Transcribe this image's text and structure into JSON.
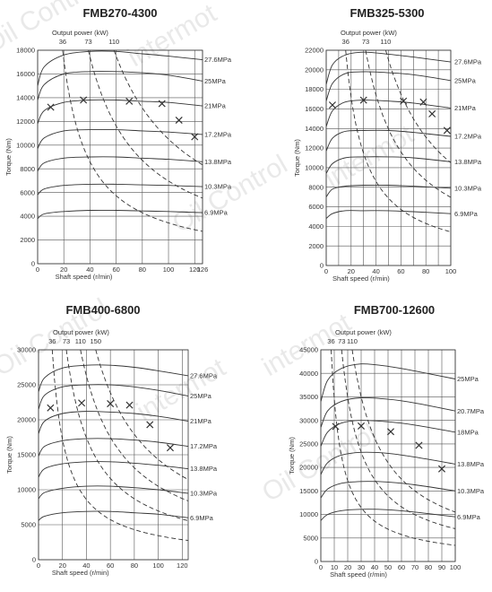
{
  "watermark": [
    "Oil Control",
    "intermot"
  ],
  "chart_data": [
    {
      "type": "line",
      "title": "FMB270-4300",
      "xlabel": "Shaft speed  (r/min)",
      "ylabel": "Torque (Nm)",
      "power_label": "Output power  (kW)",
      "xlim": [
        0,
        126
      ],
      "ylim": [
        0,
        18000
      ],
      "x_ticks": [
        0,
        20,
        40,
        60,
        80,
        100,
        120,
        126
      ],
      "x_tick_labels": [
        "0",
        "20",
        "40",
        "60",
        "80",
        "100",
        "120",
        "126"
      ],
      "y_ticks": [
        0,
        2000,
        4000,
        6000,
        8000,
        10000,
        12000,
        14000,
        16000,
        18000
      ],
      "power_curves": [
        {
          "label": "36",
          "kw": 36
        },
        {
          "label": "73",
          "kw": 73
        },
        {
          "label": "110",
          "kw": 110
        }
      ],
      "series": [
        {
          "name": "27.6MPa",
          "x": [
            0,
            5,
            20,
            40,
            60,
            80,
            100,
            126
          ],
          "y": [
            15000,
            16600,
            17600,
            17900,
            17900,
            17700,
            17500,
            17200
          ]
        },
        {
          "name": "25MPa",
          "x": [
            0,
            5,
            20,
            40,
            60,
            80,
            100,
            126
          ],
          "y": [
            13800,
            15100,
            16000,
            16200,
            16200,
            16100,
            15900,
            15400
          ]
        },
        {
          "name": "21MPa",
          "x": [
            0,
            5,
            20,
            40,
            60,
            80,
            100,
            126
          ],
          "y": [
            11800,
            12900,
            13600,
            13800,
            13800,
            13700,
            13600,
            13300
          ]
        },
        {
          "name": "17.2MPa",
          "x": [
            0,
            5,
            20,
            40,
            60,
            80,
            100,
            126
          ],
          "y": [
            9700,
            10600,
            11200,
            11300,
            11300,
            11200,
            11100,
            10900
          ]
        },
        {
          "name": "13.8MPa",
          "x": [
            0,
            5,
            20,
            40,
            60,
            80,
            100,
            126
          ],
          "y": [
            7800,
            8500,
            8900,
            9000,
            9000,
            8900,
            8800,
            8600
          ]
        },
        {
          "name": "10.3MPa",
          "x": [
            0,
            5,
            20,
            40,
            60,
            80,
            100,
            126
          ],
          "y": [
            5800,
            6300,
            6600,
            6700,
            6700,
            6650,
            6600,
            6500
          ]
        },
        {
          "name": "6.9MPa",
          "x": [
            0,
            5,
            20,
            40,
            60,
            80,
            100,
            126
          ],
          "y": [
            3800,
            4200,
            4400,
            4500,
            4500,
            4450,
            4400,
            4300
          ]
        }
      ],
      "markers": [
        [
          10,
          13200
        ],
        [
          35,
          13800
        ],
        [
          70,
          13700
        ],
        [
          95,
          13500
        ],
        [
          108,
          12100
        ],
        [
          120,
          10700
        ]
      ]
    },
    {
      "type": "line",
      "title": "FMB325-5300",
      "xlabel": "Shaft speed  (r/min)",
      "ylabel": "Torque (Nm)",
      "power_label": "Output power  (kW)",
      "xlim": [
        0,
        100
      ],
      "ylim": [
        0,
        22000
      ],
      "x_ticks": [
        0,
        10,
        20,
        30,
        40,
        50,
        60,
        70,
        80,
        90,
        100
      ],
      "x_tick_labels": [
        "0",
        "",
        "20",
        "",
        "40",
        "",
        "60",
        "",
        "80",
        "",
        "100"
      ],
      "y_ticks": [
        0,
        2000,
        4000,
        6000,
        8000,
        10000,
        12000,
        14000,
        16000,
        18000,
        20000,
        22000
      ],
      "power_curves": [
        {
          "label": "36",
          "kw": 36
        },
        {
          "label": "73",
          "kw": 73
        },
        {
          "label": "110",
          "kw": 110
        }
      ],
      "series": [
        {
          "name": "27.6MPa",
          "x": [
            0,
            5,
            15,
            30,
            50,
            70,
            100
          ],
          "y": [
            18500,
            20500,
            21500,
            21800,
            21600,
            21300,
            20800
          ]
        },
        {
          "name": "25MPa",
          "x": [
            0,
            5,
            15,
            30,
            50,
            70,
            100
          ],
          "y": [
            16800,
            18600,
            19600,
            19800,
            19700,
            19500,
            18900
          ]
        },
        {
          "name": "21MPa",
          "x": [
            0,
            5,
            15,
            30,
            50,
            70,
            100
          ],
          "y": [
            14200,
            15800,
            16700,
            16900,
            16800,
            16600,
            16100
          ]
        },
        {
          "name": "17.2MPa",
          "x": [
            0,
            5,
            15,
            30,
            50,
            70,
            100
          ],
          "y": [
            11700,
            13000,
            13700,
            13800,
            13800,
            13600,
            13200
          ]
        },
        {
          "name": "13.8MPa",
          "x": [
            0,
            5,
            15,
            30,
            50,
            70,
            100
          ],
          "y": [
            9400,
            10400,
            11000,
            11100,
            11100,
            11000,
            10600
          ]
        },
        {
          "name": "10.3MPa",
          "x": [
            0,
            5,
            15,
            30,
            50,
            70,
            100
          ],
          "y": [
            7000,
            7800,
            8100,
            8200,
            8200,
            8100,
            7900
          ]
        },
        {
          "name": "6.9MPa",
          "x": [
            0,
            5,
            15,
            30,
            50,
            70,
            100
          ],
          "y": [
            4800,
            5300,
            5600,
            5600,
            5600,
            5500,
            5300
          ]
        }
      ],
      "markers": [
        [
          5,
          16400
        ],
        [
          30,
          16900
        ],
        [
          62,
          16800
        ],
        [
          78,
          16700
        ],
        [
          85,
          15500
        ],
        [
          97,
          13800
        ]
      ]
    },
    {
      "type": "line",
      "title": "FMB400-6800",
      "xlabel": "Shaft speed  (r/min)",
      "ylabel": "Torque (Nm)",
      "power_label": "Output power  (kW)",
      "xlim": [
        0,
        125
      ],
      "ylim": [
        0,
        30000
      ],
      "x_ticks": [
        0,
        20,
        40,
        60,
        80,
        100,
        120
      ],
      "x_tick_labels": [
        "0",
        "20",
        "40",
        "60",
        "80",
        "100",
        "120"
      ],
      "y_ticks": [
        0,
        5000,
        10000,
        15000,
        20000,
        25000,
        30000
      ],
      "power_curves": [
        {
          "label": "36",
          "kw": 36
        },
        {
          "label": "73",
          "kw": 73
        },
        {
          "label": "110",
          "kw": 110
        },
        {
          "label": "150",
          "kw": 150
        }
      ],
      "series": [
        {
          "name": "27.6MPa",
          "x": [
            0,
            5,
            20,
            40,
            60,
            80,
            100,
            125
          ],
          "y": [
            24000,
            26000,
            27400,
            27800,
            27800,
            27500,
            27000,
            26300
          ]
        },
        {
          "name": "25MPa",
          "x": [
            0,
            5,
            20,
            40,
            60,
            80,
            100,
            125
          ],
          "y": [
            21500,
            23500,
            24700,
            25000,
            25000,
            24700,
            24200,
            23400
          ]
        },
        {
          "name": "21MPa",
          "x": [
            0,
            5,
            20,
            40,
            60,
            80,
            100,
            125
          ],
          "y": [
            18000,
            19800,
            20900,
            21200,
            21100,
            20900,
            20500,
            19800
          ]
        },
        {
          "name": "17.2MPa",
          "x": [
            0,
            5,
            20,
            40,
            60,
            80,
            100,
            125
          ],
          "y": [
            14800,
            16200,
            17000,
            17300,
            17300,
            17100,
            16800,
            16200
          ]
        },
        {
          "name": "13.8MPa",
          "x": [
            0,
            5,
            20,
            40,
            60,
            80,
            100,
            125
          ],
          "y": [
            11800,
            13000,
            13700,
            14000,
            14000,
            13800,
            13500,
            13000
          ]
        },
        {
          "name": "10.3MPa",
          "x": [
            0,
            5,
            20,
            40,
            60,
            80,
            100,
            125
          ],
          "y": [
            8700,
            9600,
            10200,
            10500,
            10500,
            10300,
            10000,
            9500
          ]
        },
        {
          "name": "6.9MPa",
          "x": [
            0,
            5,
            20,
            40,
            60,
            80,
            100,
            125
          ],
          "y": [
            5600,
            6200,
            6700,
            6900,
            6900,
            6700,
            6500,
            6000
          ]
        }
      ],
      "markers": [
        [
          10,
          21700
        ],
        [
          36,
          22400
        ],
        [
          60,
          22300
        ],
        [
          76,
          22100
        ],
        [
          93,
          19300
        ],
        [
          110,
          16000
        ]
      ]
    },
    {
      "type": "line",
      "title": "FMB700-12600",
      "xlabel": "Shaft speed  (r/min)",
      "ylabel": "Torque (Nm)",
      "power_label": "Output power  (kW)",
      "xlim": [
        0,
        100
      ],
      "ylim": [
        0,
        45000
      ],
      "x_ticks": [
        0,
        10,
        20,
        30,
        40,
        50,
        60,
        70,
        80,
        90,
        100
      ],
      "x_tick_labels": [
        "0",
        "10",
        "20",
        "30",
        "40",
        "50",
        "60",
        "70",
        "80",
        "90",
        "100"
      ],
      "y_ticks": [
        0,
        5000,
        10000,
        15000,
        20000,
        25000,
        30000,
        35000,
        40000,
        45000
      ],
      "power_curves": [
        {
          "label": "36",
          "kw": 36
        },
        {
          "label": "73",
          "kw": 73
        },
        {
          "label": "110",
          "kw": 110
        }
      ],
      "series": [
        {
          "name": "25MPa",
          "x": [
            0,
            5,
            15,
            30,
            50,
            70,
            100
          ],
          "y": [
            34000,
            38500,
            41000,
            42000,
            41500,
            40500,
            38800
          ]
        },
        {
          "name": "20.7MPa",
          "x": [
            0,
            5,
            15,
            30,
            50,
            70,
            100
          ],
          "y": [
            28500,
            32000,
            34000,
            34800,
            34500,
            33700,
            32000
          ]
        },
        {
          "name": "18MPa",
          "x": [
            0,
            5,
            15,
            30,
            50,
            70,
            100
          ],
          "y": [
            24500,
            27500,
            29400,
            30000,
            29700,
            29000,
            27500
          ]
        },
        {
          "name": "13.8MPa",
          "x": [
            0,
            5,
            15,
            30,
            50,
            70,
            100
          ],
          "y": [
            18500,
            21000,
            22600,
            23200,
            23000,
            22200,
            20700
          ]
        },
        {
          "name": "10.3MPa",
          "x": [
            0,
            5,
            15,
            30,
            50,
            70,
            100
          ],
          "y": [
            13500,
            15400,
            16600,
            17000,
            16900,
            16300,
            15000
          ]
        },
        {
          "name": "6.9MPa",
          "x": [
            0,
            5,
            15,
            30,
            50,
            70,
            100
          ],
          "y": [
            8700,
            10000,
            10800,
            11100,
            11000,
            10500,
            9500
          ]
        }
      ],
      "markers": [
        [
          11,
          28700
        ],
        [
          30,
          28800
        ],
        [
          52,
          27600
        ],
        [
          73,
          24700
        ],
        [
          90,
          19700
        ]
      ]
    }
  ]
}
